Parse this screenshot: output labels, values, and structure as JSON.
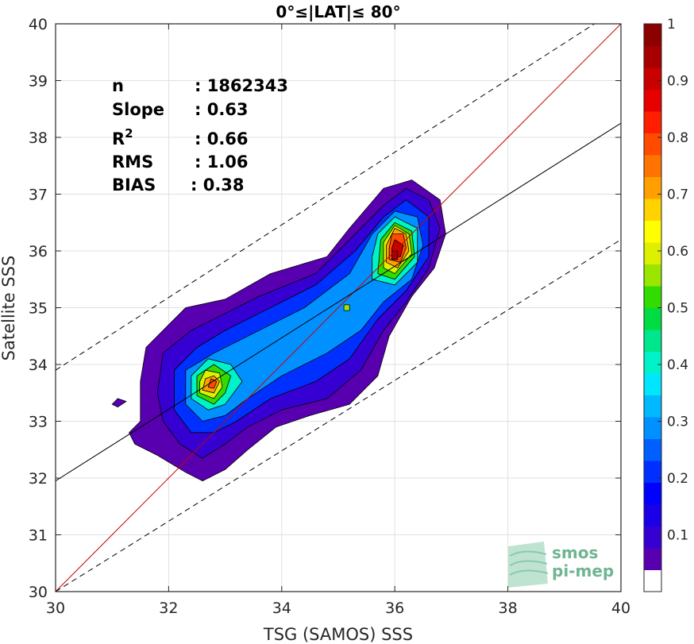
{
  "chart_data": {
    "type": "heatmap",
    "title": "0°≤|LAT|≤ 80°",
    "xlabel": "TSG (SAMOS) SSS",
    "ylabel": "Satellite SSS",
    "xlim": [
      30,
      40
    ],
    "ylim": [
      30,
      40
    ],
    "xticks": [
      30,
      32,
      34,
      36,
      38,
      40
    ],
    "yticks": [
      30,
      31,
      32,
      33,
      34,
      35,
      36,
      37,
      38,
      39,
      40
    ],
    "grid": true,
    "stats": [
      {
        "label": "n",
        "value": ": 1862343"
      },
      {
        "label": "Slope",
        "value": ": 0.63"
      },
      {
        "label": "R",
        "sup": "2",
        "value": ": 0.66"
      },
      {
        "label": "RMS",
        "value": ": 1.06"
      },
      {
        "label": "BIAS",
        "value": ": 0.38"
      }
    ],
    "lines": [
      {
        "kind": "one-to-one",
        "color": "#cc0000",
        "style": "solid",
        "points": [
          [
            30,
            30
          ],
          [
            40,
            40
          ]
        ]
      },
      {
        "kind": "regression",
        "color": "#000000",
        "style": "solid",
        "points": [
          [
            30,
            31.95
          ],
          [
            40,
            38.25
          ]
        ]
      },
      {
        "kind": "upper-bound",
        "color": "#000000",
        "style": "dashed",
        "points": [
          [
            30,
            33.9
          ],
          [
            40,
            40.3
          ]
        ]
      },
      {
        "kind": "lower-bound",
        "color": "#000000",
        "style": "dashed",
        "points": [
          [
            30,
            30.0
          ],
          [
            40,
            36.2
          ]
        ]
      }
    ],
    "density_peaks": [
      {
        "name": "low-salinity mode",
        "x": 32.75,
        "y": 33.7,
        "max_level": 0.8
      },
      {
        "name": "high-salinity mode",
        "x": 36.0,
        "y": 36.0,
        "max_level": 0.95
      }
    ],
    "contours": [
      {
        "level": 0.05,
        "polygon": [
          [
            31.1,
            33.4
          ],
          [
            31.25,
            33.35
          ],
          [
            31.1,
            33.25
          ],
          [
            31.0,
            33.3
          ]
        ]
      },
      {
        "level": 0.05,
        "polygon": [
          [
            31.5,
            33.0
          ],
          [
            31.3,
            32.8
          ],
          [
            31.4,
            32.6
          ],
          [
            31.8,
            32.4
          ],
          [
            32.3,
            32.1
          ],
          [
            32.6,
            31.95
          ],
          [
            33.0,
            32.15
          ],
          [
            33.4,
            32.5
          ],
          [
            33.9,
            32.9
          ],
          [
            34.5,
            33.1
          ],
          [
            35.2,
            33.3
          ],
          [
            35.7,
            33.8
          ],
          [
            35.9,
            34.5
          ],
          [
            36.3,
            35.2
          ],
          [
            36.7,
            35.7
          ],
          [
            36.9,
            36.3
          ],
          [
            36.8,
            36.9
          ],
          [
            36.3,
            37.25
          ],
          [
            35.8,
            37.1
          ],
          [
            35.2,
            36.4
          ],
          [
            34.8,
            35.9
          ],
          [
            33.8,
            35.6
          ],
          [
            33.0,
            35.15
          ],
          [
            32.3,
            35.0
          ],
          [
            32.0,
            34.7
          ],
          [
            31.6,
            34.3
          ],
          [
            31.5,
            33.7
          ]
        ]
      },
      {
        "level": 0.1,
        "polygon": [
          [
            31.9,
            33.0
          ],
          [
            32.2,
            32.6
          ],
          [
            32.6,
            32.35
          ],
          [
            33.0,
            32.6
          ],
          [
            33.4,
            32.9
          ],
          [
            34.0,
            33.2
          ],
          [
            34.8,
            33.4
          ],
          [
            35.4,
            33.9
          ],
          [
            35.8,
            34.6
          ],
          [
            36.2,
            35.1
          ],
          [
            36.6,
            35.7
          ],
          [
            36.8,
            36.4
          ],
          [
            36.6,
            36.9
          ],
          [
            36.2,
            37.1
          ],
          [
            35.8,
            36.8
          ],
          [
            35.3,
            36.3
          ],
          [
            34.6,
            35.6
          ],
          [
            33.6,
            35.2
          ],
          [
            33.0,
            34.9
          ],
          [
            32.4,
            34.6
          ],
          [
            31.9,
            34.2
          ],
          [
            31.8,
            33.5
          ]
        ]
      },
      {
        "level": 0.2,
        "polygon": [
          [
            32.1,
            33.2
          ],
          [
            32.4,
            32.8
          ],
          [
            32.8,
            32.8
          ],
          [
            33.2,
            33.0
          ],
          [
            33.8,
            33.4
          ],
          [
            34.6,
            33.7
          ],
          [
            35.2,
            34.1
          ],
          [
            35.7,
            34.8
          ],
          [
            36.2,
            35.3
          ],
          [
            36.6,
            35.9
          ],
          [
            36.6,
            36.6
          ],
          [
            36.2,
            36.9
          ],
          [
            35.8,
            36.6
          ],
          [
            35.3,
            36.0
          ],
          [
            34.6,
            35.4
          ],
          [
            33.6,
            34.9
          ],
          [
            33.0,
            34.6
          ],
          [
            32.5,
            34.3
          ],
          [
            32.1,
            33.9
          ]
        ]
      },
      {
        "level": 0.3,
        "polygon": [
          [
            32.3,
            33.3
          ],
          [
            32.6,
            33.0
          ],
          [
            33.0,
            33.1
          ],
          [
            33.4,
            33.4
          ],
          [
            34.0,
            33.8
          ],
          [
            34.8,
            34.2
          ],
          [
            35.4,
            34.6
          ],
          [
            35.8,
            35.1
          ],
          [
            36.3,
            35.5
          ],
          [
            36.5,
            36.1
          ],
          [
            36.4,
            36.6
          ],
          [
            36.0,
            36.7
          ],
          [
            35.6,
            36.3
          ],
          [
            35.2,
            35.6
          ],
          [
            34.4,
            35.0
          ],
          [
            33.4,
            34.5
          ],
          [
            32.8,
            34.2
          ],
          [
            32.3,
            33.9
          ]
        ]
      },
      {
        "level": 0.4,
        "polygon": [
          [
            32.4,
            33.4
          ],
          [
            32.7,
            33.2
          ],
          [
            33.0,
            33.3
          ],
          [
            33.3,
            33.7
          ],
          [
            33.1,
            34.0
          ],
          [
            32.7,
            34.1
          ],
          [
            32.4,
            33.8
          ]
        ]
      },
      {
        "level": 0.4,
        "polygon": [
          [
            35.6,
            35.5
          ],
          [
            36.0,
            35.4
          ],
          [
            36.4,
            35.8
          ],
          [
            36.4,
            36.4
          ],
          [
            36.0,
            36.6
          ],
          [
            35.7,
            36.3
          ],
          [
            35.6,
            35.9
          ]
        ]
      },
      {
        "level": 0.5,
        "polygon": [
          [
            32.5,
            33.45
          ],
          [
            32.8,
            33.3
          ],
          [
            33.0,
            33.5
          ],
          [
            33.1,
            33.8
          ],
          [
            32.8,
            34.0
          ],
          [
            32.5,
            33.8
          ]
        ]
      },
      {
        "level": 0.5,
        "polygon": [
          [
            35.7,
            35.6
          ],
          [
            36.0,
            35.5
          ],
          [
            36.35,
            35.9
          ],
          [
            36.3,
            36.35
          ],
          [
            36.0,
            36.5
          ],
          [
            35.75,
            36.2
          ]
        ]
      },
      {
        "level": 0.55,
        "polygon": [
          [
            35.1,
            34.95
          ],
          [
            35.2,
            34.95
          ],
          [
            35.2,
            35.05
          ],
          [
            35.1,
            35.05
          ]
        ]
      },
      {
        "level": 0.6,
        "polygon": [
          [
            32.55,
            33.5
          ],
          [
            32.8,
            33.4
          ],
          [
            32.95,
            33.6
          ],
          [
            32.9,
            33.85
          ],
          [
            32.65,
            33.9
          ],
          [
            32.55,
            33.7
          ]
        ]
      },
      {
        "level": 0.6,
        "polygon": [
          [
            35.8,
            35.7
          ],
          [
            36.0,
            35.6
          ],
          [
            36.3,
            35.95
          ],
          [
            36.25,
            36.3
          ],
          [
            36.0,
            36.45
          ],
          [
            35.8,
            36.15
          ]
        ]
      },
      {
        "level": 0.7,
        "polygon": [
          [
            32.6,
            33.55
          ],
          [
            32.8,
            33.5
          ],
          [
            32.9,
            33.7
          ],
          [
            32.8,
            33.8
          ],
          [
            32.65,
            33.75
          ]
        ]
      },
      {
        "level": 0.7,
        "polygon": [
          [
            35.85,
            35.8
          ],
          [
            36.05,
            35.7
          ],
          [
            36.25,
            36.0
          ],
          [
            36.2,
            36.3
          ],
          [
            36.0,
            36.4
          ],
          [
            35.85,
            36.1
          ]
        ]
      },
      {
        "level": 0.8,
        "polygon": [
          [
            32.7,
            33.6
          ],
          [
            32.8,
            33.58
          ],
          [
            32.85,
            33.7
          ],
          [
            32.75,
            33.75
          ]
        ]
      },
      {
        "level": 0.8,
        "polygon": [
          [
            35.9,
            35.85
          ],
          [
            36.1,
            35.8
          ],
          [
            36.2,
            36.05
          ],
          [
            36.15,
            36.3
          ],
          [
            35.95,
            36.3
          ],
          [
            35.9,
            36.05
          ]
        ]
      },
      {
        "level": 0.9,
        "polygon": [
          [
            35.95,
            35.9
          ],
          [
            36.1,
            35.9
          ],
          [
            36.15,
            36.1
          ],
          [
            36.0,
            36.2
          ],
          [
            35.95,
            36.05
          ]
        ]
      },
      {
        "level": 0.95,
        "polygon": [
          [
            35.95,
            35.85
          ],
          [
            36.05,
            35.85
          ],
          [
            36.05,
            36.0
          ],
          [
            35.95,
            36.0
          ]
        ]
      }
    ],
    "colorbar": {
      "ticks": [
        0.1,
        0.2,
        0.3,
        0.4,
        0.5,
        0.6,
        0.7,
        0.8,
        0.9,
        1
      ],
      "tick_labels": [
        "0.1",
        "0.2",
        "0.3",
        "0.4",
        "0.5",
        "0.6",
        "0.7",
        "0.8",
        "0.9",
        "1"
      ],
      "range": [
        0,
        1
      ],
      "colors": [
        "#ffffff",
        "#5800b0",
        "#3700d2",
        "#1a00e6",
        "#0000ff",
        "#0030ff",
        "#0060ff",
        "#0090ff",
        "#00b9ff",
        "#00e6ff",
        "#00f2c8",
        "#00e68c",
        "#00dc41",
        "#32dc00",
        "#9be600",
        "#dcf000",
        "#ffff00",
        "#ffd200",
        "#ffa000",
        "#ff7300",
        "#ff4b00",
        "#ff1e00",
        "#e60000",
        "#c80000",
        "#a80000",
        "#8c0000"
      ]
    }
  },
  "logo": {
    "line1": "smos",
    "line2": "pi-mep"
  }
}
